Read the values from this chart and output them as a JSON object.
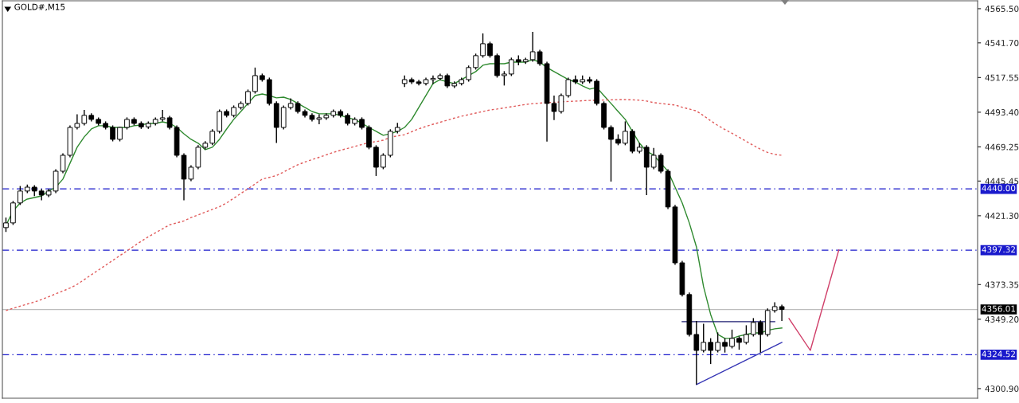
{
  "chart_data": {
    "type": "candlestick",
    "title": "GOLD#,M15",
    "color": "#000000",
    "categories": [
      null,
      null,
      null,
      null,
      null,
      null,
      null,
      null,
      null,
      null,
      null,
      null,
      null,
      null,
      null,
      null,
      null,
      null,
      null,
      null,
      null,
      null,
      null,
      null,
      null,
      null,
      null,
      null,
      null,
      null,
      null,
      null,
      null,
      null,
      null,
      null,
      null,
      null,
      null,
      null,
      null,
      null,
      null,
      null,
      null,
      null,
      null,
      null,
      null,
      null,
      null,
      null,
      null,
      null,
      null,
      null,
      null,
      null,
      null,
      null,
      null,
      null,
      null,
      null,
      null,
      null,
      null,
      null,
      null,
      null,
      null,
      null,
      null,
      null,
      null,
      null,
      null,
      null,
      null,
      null,
      null,
      null,
      null,
      null,
      null,
      null,
      null,
      null,
      null,
      null,
      null,
      null,
      null,
      null,
      null,
      null,
      null,
      null,
      null,
      null,
      null,
      null,
      null,
      null,
      null,
      null,
      null,
      null,
      null,
      null,
      null,
      null,
      null,
      null,
      null,
      null,
      null,
      null,
      null,
      null,
      null,
      null,
      null,
      null,
      null,
      null,
      null,
      null,
      null,
      null,
      null,
      null,
      null,
      null,
      null,
      null,
      null
    ],
    "ohlc": [
      [
        4413.0,
        4420.0,
        4410.0,
        4416.3
      ],
      [
        4416.3,
        4431.6,
        4414.9,
        4430.2
      ],
      [
        4430.2,
        4442.0,
        4428.8,
        4438.5
      ],
      [
        4438.5,
        4443.0,
        4437.1,
        4441.2
      ],
      [
        4441.2,
        4442.6,
        4435.0,
        4438.5
      ],
      [
        4438.5,
        4439.9,
        4432.0,
        4435.7
      ],
      [
        4435.7,
        4439.9,
        4434.3,
        4438.5
      ],
      [
        4438.5,
        4453.7,
        4437.1,
        4452.3
      ],
      [
        4452.3,
        4464.8,
        4450.9,
        4463.4
      ],
      [
        4463.4,
        4484.2,
        4462.0,
        4482.8
      ],
      [
        4482.8,
        4492.0,
        4481.4,
        4485.6
      ],
      [
        4485.6,
        4495.0,
        4484.2,
        4491.2
      ],
      [
        4491.2,
        4492.6,
        4487.0,
        4488.4
      ],
      [
        4488.4,
        4489.8,
        4484.2,
        4485.6
      ],
      [
        4485.6,
        4487.0,
        4481.4,
        4482.8
      ],
      [
        4482.8,
        4484.2,
        4473.1,
        4474.5
      ],
      [
        4474.5,
        4483.2,
        4473.1,
        4482.8
      ],
      [
        4482.8,
        4489.8,
        4481.4,
        4488.4
      ],
      [
        4488.4,
        4489.8,
        4484.2,
        4485.6
      ],
      [
        4485.6,
        4487.0,
        4481.8,
        4483.2
      ],
      [
        4483.2,
        4487.0,
        4481.8,
        4485.6
      ],
      [
        4485.6,
        4489.8,
        4484.2,
        4488.4
      ],
      [
        4488.4,
        4495.0,
        4487.0,
        4489.5
      ],
      [
        4489.5,
        4490.9,
        4481.4,
        4482.8
      ],
      [
        4482.8,
        4484.2,
        4462.0,
        4463.4
      ],
      [
        4463.4,
        4464.8,
        4432.0,
        4446.8
      ],
      [
        4446.8,
        4456.5,
        4445.4,
        4455.1
      ],
      [
        4455.1,
        4470.4,
        4453.7,
        4469.0
      ],
      [
        4469.0,
        4473.2,
        4467.6,
        4471.8
      ],
      [
        4471.8,
        4481.5,
        4470.4,
        4480.1
      ],
      [
        4480.1,
        4495.3,
        4478.7,
        4493.9
      ],
      [
        4493.9,
        4495.3,
        4489.8,
        4491.2
      ],
      [
        4491.2,
        4498.1,
        4489.8,
        4496.7
      ],
      [
        4496.7,
        4500.9,
        4495.3,
        4499.5
      ],
      [
        4499.5,
        4509.2,
        4498.1,
        4507.8
      ],
      [
        4507.8,
        4524.5,
        4506.4,
        4518.9
      ],
      [
        4518.9,
        4520.3,
        4514.7,
        4516.1
      ],
      [
        4516.1,
        4517.5,
        4498.1,
        4499.5
      ],
      [
        4499.5,
        4500.9,
        4472.0,
        4482.8
      ],
      [
        4482.8,
        4498.1,
        4481.4,
        4496.7
      ],
      [
        4496.7,
        4503.0,
        4495.3,
        4499.5
      ],
      [
        4499.5,
        4500.9,
        4492.5,
        4493.9
      ],
      [
        4493.9,
        4495.3,
        4489.8,
        4491.2
      ],
      [
        4491.2,
        4492.6,
        4487.0,
        4488.4
      ],
      [
        4488.4,
        4492.0,
        4485.0,
        4489.5
      ],
      [
        4489.5,
        4492.6,
        4488.1,
        4491.2
      ],
      [
        4491.2,
        4495.3,
        4489.8,
        4493.9
      ],
      [
        4493.9,
        4495.3,
        4489.8,
        4491.2
      ],
      [
        4491.2,
        4492.6,
        4484.2,
        4485.6
      ],
      [
        4485.6,
        4489.8,
        4484.2,
        4488.4
      ],
      [
        4488.4,
        4489.8,
        4481.4,
        4482.8
      ],
      [
        4482.8,
        4484.2,
        4467.6,
        4469.0
      ],
      [
        4469.0,
        4470.4,
        4449.0,
        4455.1
      ],
      [
        4455.1,
        4464.8,
        4453.7,
        4463.4
      ],
      [
        4463.4,
        4481.5,
        4462.0,
        4480.1
      ],
      [
        4480.1,
        4486.0,
        4478.7,
        4482.8
      ],
      [
        4513.4,
        4519.0,
        4511.0,
        4516.1
      ],
      [
        4516.1,
        4517.5,
        4513.1,
        4514.5
      ],
      [
        4514.5,
        4515.9,
        4512.0,
        4513.4
      ],
      [
        4513.4,
        4517.5,
        4512.0,
        4516.1
      ],
      [
        4516.1,
        4519.0,
        4513.0,
        4517.0
      ],
      [
        4517.0,
        4520.3,
        4515.6,
        4518.9
      ],
      [
        4518.9,
        4520.3,
        4510.3,
        4511.7
      ],
      [
        4511.7,
        4514.8,
        4510.3,
        4513.4
      ],
      [
        4513.4,
        4517.5,
        4512.0,
        4516.1
      ],
      [
        4516.1,
        4525.9,
        4514.7,
        4524.5
      ],
      [
        4524.5,
        4534.2,
        4523.1,
        4532.8
      ],
      [
        4532.8,
        4548.3,
        4531.4,
        4541.1
      ],
      [
        4541.1,
        4542.5,
        4531.4,
        4532.8
      ],
      [
        4532.8,
        4534.2,
        4517.5,
        4518.9
      ],
      [
        4518.9,
        4522.0,
        4512.0,
        4520.0
      ],
      [
        4520.0,
        4531.4,
        4518.6,
        4530.0
      ],
      [
        4530.0,
        4533.0,
        4526.0,
        4528.5
      ],
      [
        4528.5,
        4531.4,
        4527.1,
        4530.0
      ],
      [
        4530.0,
        4549.4,
        4528.6,
        4535.5
      ],
      [
        4535.5,
        4536.9,
        4525.8,
        4527.2
      ],
      [
        4527.2,
        4528.6,
        4472.9,
        4499.5
      ],
      [
        4499.5,
        4505.0,
        4488.0,
        4493.9
      ],
      [
        4493.9,
        4506.4,
        4492.5,
        4505.0
      ],
      [
        4505.0,
        4517.5,
        4503.6,
        4516.1
      ],
      [
        4516.1,
        4519.0,
        4513.1,
        4514.5
      ],
      [
        4514.5,
        4519.0,
        4513.1,
        4516.1
      ],
      [
        4516.1,
        4518.0,
        4513.6,
        4515.0
      ],
      [
        4515.0,
        4516.4,
        4498.1,
        4499.5
      ],
      [
        4499.5,
        4500.9,
        4481.4,
        4482.8
      ],
      [
        4482.8,
        4484.2,
        4445.1,
        4474.5
      ],
      [
        4474.5,
        4478.0,
        4470.4,
        4471.8
      ],
      [
        4471.8,
        4487.0,
        4470.4,
        4480.1
      ],
      [
        4480.1,
        4481.5,
        4464.8,
        4466.2
      ],
      [
        4466.2,
        4472.0,
        4464.8,
        4469.0
      ],
      [
        4469.0,
        4470.4,
        4435.7,
        4455.1
      ],
      [
        4455.1,
        4468.5,
        4453.7,
        4463.4
      ],
      [
        4463.4,
        4464.8,
        4450.9,
        4452.3
      ],
      [
        4452.3,
        4453.7,
        4426.0,
        4427.4
      ],
      [
        4427.4,
        4428.8,
        4387.1,
        4388.5
      ],
      [
        4388.5,
        4389.9,
        4365.0,
        4366.4
      ],
      [
        4366.4,
        4367.8,
        4337.2,
        4338.6
      ],
      [
        4338.6,
        4348.0,
        4303.7,
        4327.5
      ],
      [
        4327.5,
        4346.0,
        4326.1,
        4333.1
      ],
      [
        4333.1,
        4336.0,
        4318.0,
        4327.5
      ],
      [
        4327.5,
        4340.0,
        4326.1,
        4333.1
      ],
      [
        4333.1,
        4336.0,
        4326.0,
        4330.3
      ],
      [
        4330.3,
        4342.0,
        4328.9,
        4335.9
      ],
      [
        4335.9,
        4337.3,
        4328.0,
        4333.1
      ],
      [
        4333.1,
        4345.0,
        4331.7,
        4338.6
      ],
      [
        4338.6,
        4350.0,
        4337.2,
        4347.0
      ],
      [
        4347.0,
        4348.4,
        4326.0,
        4338.6
      ],
      [
        4338.6,
        4356.7,
        4337.2,
        4355.3
      ],
      [
        4355.3,
        4361.0,
        4353.9,
        4358.0
      ],
      [
        4358.0,
        4359.4,
        4348.0,
        4356.0
      ],
      null,
      null,
      null,
      null,
      null,
      null,
      null,
      null,
      null,
      null,
      null,
      null,
      null,
      null,
      null,
      null,
      null,
      null,
      null,
      null,
      null,
      null,
      null,
      null,
      null,
      null,
      null
    ],
    "series": [
      {
        "type": "line",
        "color": "#2f8a2f",
        "line_style": "solid",
        "values": [
          4414.6,
          4424.6,
          4430.2,
          4432.9,
          4434.0,
          4435.1,
          4438.5,
          4441.2,
          4446.8,
          4457.9,
          4469.0,
          4476.2,
          4481.7,
          4484.0,
          4484.0,
          4482.8,
          4482.8,
          4482.8,
          4484.0,
          4484.5,
          4485.6,
          4485.6,
          4486.7,
          4485.6,
          4482.8,
          4478.4,
          4474.5,
          4471.8,
          4467.3,
          4469.0,
          4474.5,
          4481.7,
          4488.4,
          4493.9,
          4499.5,
          4505.0,
          4506.1,
          4505.0,
          4503.4,
          4503.9,
          4502.3,
          4499.5,
          4496.7,
          4493.9,
          4492.3,
          4492.3,
          4492.3,
          4491.2,
          4489.5,
          4488.4,
          4485.6,
          4482.8,
          4480.1,
          4477.3,
          4478.4,
          4480.1,
          4482.8,
          4488.4,
          4496.7,
          4505.0,
          4513.4,
          4516.1,
          4514.5,
          4513.4,
          4516.1,
          4518.9,
          4521.7,
          4526.1,
          4527.2,
          4527.2,
          4527.2,
          4528.3,
          4528.3,
          4528.3,
          4530.0,
          4528.3,
          4524.5,
          4521.7,
          4518.9,
          4516.1,
          4514.5,
          4511.7,
          4509.5,
          4510.6,
          4505.0,
          4499.5,
          4493.9,
          4488.4,
          4480.1,
          4471.8,
          4466.2,
          4463.4,
          4457.9,
          4452.3,
          4441.2,
          4430.2,
          4416.3,
          4399.6,
          4371.9,
          4352.5,
          4338.6,
          4335.9,
          4335.9,
          4337.5,
          4338.6,
          4339.7,
          4339.7,
          4341.4,
          4342.5,
          4343.1,
          null,
          null,
          null,
          null,
          null,
          null,
          null,
          null,
          null,
          null,
          null,
          null,
          null,
          null,
          null,
          null,
          null,
          null,
          null,
          null,
          null,
          null,
          null,
          null,
          null,
          null,
          null
        ]
      },
      {
        "type": "line",
        "color": "#e05a5a",
        "line_style": "dotted",
        "values": [
          4355.3,
          4356.8,
          4358.3,
          4359.8,
          4361.2,
          4362.9,
          4364.9,
          4366.9,
          4368.9,
          4370.9,
          4373.5,
          4376.8,
          4380.2,
          4383.5,
          4386.8,
          4390.2,
          4393.5,
          4396.8,
          4400.2,
          4403.5,
          4406.6,
          4409.4,
          4412.2,
          4415.0,
          4416.3,
          4417.7,
          4420.0,
          4421.9,
          4423.8,
          4425.7,
          4427.6,
          4430.2,
          4433.5,
          4436.8,
          4440.1,
          4443.4,
          4446.8,
          4448.0,
          4449.3,
          4451.7,
          4454.4,
          4456.8,
          4458.7,
          4460.4,
          4462.0,
          4463.7,
          4465.4,
          4466.9,
          4468.2,
          4469.6,
          4470.9,
          4472.3,
          4472.9,
          4473.9,
          4475.9,
          4476.9,
          4477.8,
          4479.8,
          4481.8,
          4483.5,
          4485.0,
          4486.4,
          4487.9,
          4489.3,
          4490.6,
          4491.7,
          4492.8,
          4493.9,
          4495.0,
          4495.6,
          4496.4,
          4497.2,
          4498.0,
          4498.8,
          4499.4,
          4499.7,
          4500.1,
          4500.3,
          4500.6,
          4500.9,
          4501.1,
          4501.4,
          4501.6,
          4501.8,
          4501.9,
          4502.0,
          4502.2,
          4502.2,
          4502.0,
          4501.8,
          4501.2,
          4500.1,
          4499.5,
          4498.9,
          4498.4,
          4496.9,
          4495.6,
          4494.3,
          4491.0,
          4487.4,
          4484.2,
          4481.4,
          4478.7,
          4475.9,
          4473.1,
          4470.3,
          4467.6,
          4465.4,
          4464.0,
          4463.4,
          null,
          null,
          null,
          null,
          null,
          null,
          null,
          null,
          null,
          null,
          null,
          null,
          null,
          null,
          null,
          null,
          null,
          null,
          null,
          null,
          null,
          null,
          null,
          null,
          null,
          null,
          null
        ]
      },
      {
        "type": "line",
        "color": "#1c1c70",
        "line_style": "solid",
        "values": [
          null,
          null,
          null,
          null,
          null,
          null,
          null,
          null,
          null,
          null,
          null,
          null,
          null,
          null,
          null,
          null,
          null,
          null,
          null,
          null,
          null,
          null,
          null,
          null,
          null,
          null,
          null,
          null,
          null,
          null,
          null,
          null,
          null,
          null,
          null,
          null,
          null,
          null,
          null,
          null,
          null,
          null,
          null,
          null,
          null,
          null,
          null,
          null,
          null,
          null,
          null,
          null,
          null,
          null,
          null,
          null,
          null,
          null,
          null,
          null,
          null,
          null,
          null,
          null,
          null,
          null,
          null,
          null,
          null,
          null,
          null,
          null,
          null,
          null,
          null,
          null,
          null,
          null,
          null,
          null,
          null,
          null,
          null,
          null,
          null,
          null,
          null,
          null,
          null,
          null,
          null,
          null,
          null,
          null,
          null,
          4347.5,
          null,
          null,
          null,
          null,
          null,
          null,
          null,
          null,
          null,
          null,
          null,
          null,
          4347.5,
          null,
          null,
          null,
          null,
          null,
          null,
          null,
          null,
          null,
          null,
          null,
          null,
          null,
          null,
          null,
          null,
          null,
          null,
          null,
          null,
          null,
          null,
          null,
          null,
          null,
          null,
          null,
          null
        ]
      },
      {
        "type": "line",
        "color": "#3535b5",
        "line_style": "solid",
        "values": [
          null,
          null,
          null,
          null,
          null,
          null,
          null,
          null,
          null,
          null,
          null,
          null,
          null,
          null,
          null,
          null,
          null,
          null,
          null,
          null,
          null,
          null,
          null,
          null,
          null,
          null,
          null,
          null,
          null,
          null,
          null,
          null,
          null,
          null,
          null,
          null,
          null,
          null,
          null,
          null,
          null,
          null,
          null,
          null,
          null,
          null,
          null,
          null,
          null,
          null,
          null,
          null,
          null,
          null,
          null,
          null,
          null,
          null,
          null,
          null,
          null,
          null,
          null,
          null,
          null,
          null,
          null,
          null,
          null,
          null,
          null,
          null,
          null,
          null,
          null,
          null,
          null,
          null,
          null,
          null,
          null,
          null,
          null,
          null,
          null,
          null,
          null,
          null,
          null,
          null,
          null,
          null,
          null,
          null,
          null,
          null,
          null,
          4303.7,
          null,
          null,
          null,
          null,
          null,
          null,
          null,
          null,
          null,
          null,
          null,
          4333.1,
          null,
          null,
          null,
          null,
          null,
          null,
          null,
          null,
          null,
          null,
          null,
          null,
          null,
          null,
          null,
          null,
          null,
          null,
          null,
          null,
          null,
          null,
          null,
          null,
          null,
          null,
          null
        ]
      },
      {
        "type": "line",
        "color": "#d0406a",
        "line_style": "solid",
        "values": [
          null,
          null,
          null,
          null,
          null,
          null,
          null,
          null,
          null,
          null,
          null,
          null,
          null,
          null,
          null,
          null,
          null,
          null,
          null,
          null,
          null,
          null,
          null,
          null,
          null,
          null,
          null,
          null,
          null,
          null,
          null,
          null,
          null,
          null,
          null,
          null,
          null,
          null,
          null,
          null,
          null,
          null,
          null,
          null,
          null,
          null,
          null,
          null,
          null,
          null,
          null,
          null,
          null,
          null,
          null,
          null,
          null,
          null,
          null,
          null,
          null,
          null,
          null,
          null,
          null,
          null,
          null,
          null,
          null,
          null,
          null,
          null,
          null,
          null,
          null,
          null,
          null,
          null,
          null,
          null,
          null,
          null,
          null,
          null,
          null,
          null,
          null,
          null,
          null,
          null,
          null,
          null,
          null,
          null,
          null,
          null,
          null,
          null,
          null,
          null,
          null,
          null,
          null,
          null,
          null,
          null,
          null,
          null,
          null,
          null,
          4349.7,
          null,
          null,
          4327.5,
          null,
          null,
          null,
          4397.4,
          null,
          null,
          null,
          null,
          null,
          null,
          null,
          null,
          null,
          null,
          null,
          null,
          null,
          null,
          null,
          null,
          null,
          null,
          null
        ]
      }
    ],
    "ref_lines": [
      {
        "axis": "y",
        "value": 4440.0,
        "label": "4440.00",
        "color": "#1a1acc",
        "line_style": "dashdot"
      },
      {
        "axis": "y",
        "value": 4397.32,
        "label": "4397.32",
        "color": "#1a1acc",
        "line_style": "dashdot"
      },
      {
        "axis": "y",
        "value": 4356.01,
        "label": "4356.01",
        "color": "#bdbdbd",
        "line_style": "solid"
      },
      {
        "axis": "y",
        "value": 4324.52,
        "label": "4324.52",
        "color": "#1a1acc",
        "line_style": "dashdot"
      }
    ],
    "ylim": [
      4294.2,
      4571.0
    ],
    "yticks": [
      {
        "value": 4565.5,
        "label": "4565.50"
      },
      {
        "value": 4541.7,
        "label": "4541.70"
      },
      {
        "value": 4517.55,
        "label": "4517.55"
      },
      {
        "value": 4493.4,
        "label": "4493.40"
      },
      {
        "value": 4469.25,
        "label": "4469.25"
      },
      {
        "value": 4445.45,
        "label": "4445.45"
      },
      {
        "value": 4421.3,
        "label": "4421.30"
      },
      {
        "value": 4373.35,
        "label": "4373.35"
      },
      {
        "value": 4349.2,
        "label": "4349.20"
      },
      {
        "value": 4300.9,
        "label": "4300.90"
      }
    ],
    "grid": false,
    "legend": false,
    "tick_labels": "y"
  }
}
